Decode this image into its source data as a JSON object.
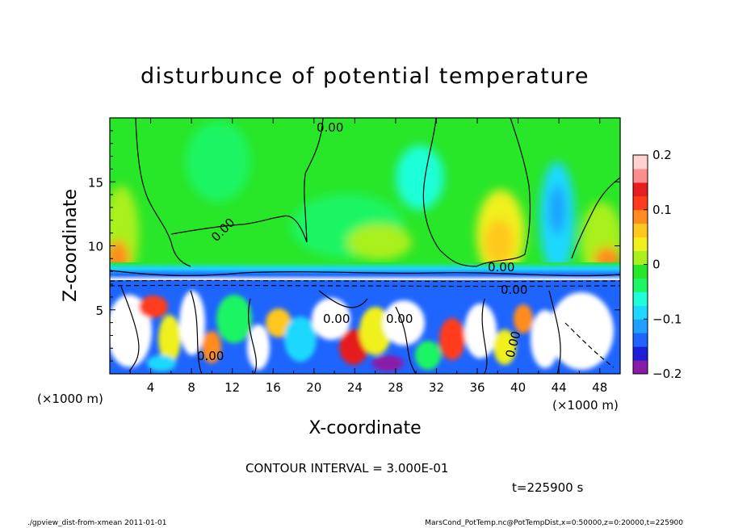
{
  "chart_data": {
    "type": "heatmap",
    "title": "disturbunce of potential temperature",
    "xlabel": "X-coordinate",
    "ylabel": "Z-coordinate",
    "x_unit_left": "(×1000 m)",
    "x_unit_right": "(×1000 m)",
    "xlim": [
      0,
      50
    ],
    "ylim": [
      0,
      20
    ],
    "x_ticks": [
      4,
      8,
      12,
      16,
      20,
      24,
      28,
      32,
      36,
      40,
      44,
      48
    ],
    "x_tick_labels": [
      "4",
      "8",
      "12",
      "16",
      "20",
      "24",
      "28",
      "32",
      "36",
      "40",
      "44",
      "48"
    ],
    "y_ticks": [
      5,
      10,
      15
    ],
    "y_tick_labels": [
      "5",
      "10",
      "15"
    ],
    "colorbar": {
      "range": [
        -0.2,
        0.2
      ],
      "ticks": [
        0.2,
        0.1,
        0,
        -0.1,
        -0.2
      ],
      "tick_labels": [
        "0.2",
        "0.1",
        "0",
        "−0.1",
        "−0.2"
      ],
      "colors": [
        "#8a1aa8",
        "#1e1ed8",
        "#1e64ff",
        "#1ea0ff",
        "#1ed8ff",
        "#1effd8",
        "#1ef564",
        "#28e628",
        "#aaf01e",
        "#f0f01e",
        "#ffc81e",
        "#ff8c1e",
        "#ff3c1e",
        "#e61e1e",
        "#ff8c8c",
        "#ffd2d2"
      ]
    },
    "contour_labels": [
      "0.00",
      "0.00",
      "0.00",
      "0.00",
      "0.00",
      "0.00",
      "0.00",
      "0.00"
    ],
    "contour_interval": "CONTOUR INTERVAL = 3.000E-01",
    "time_label": "t=225900 s",
    "grid": false
  },
  "footer": {
    "left": "./gpview_dist-from-xmean 2011-01-01",
    "right": "MarsCond_PotTemp.nc@PotTempDist,x=0:50000,z=0:20000,t=225900"
  }
}
